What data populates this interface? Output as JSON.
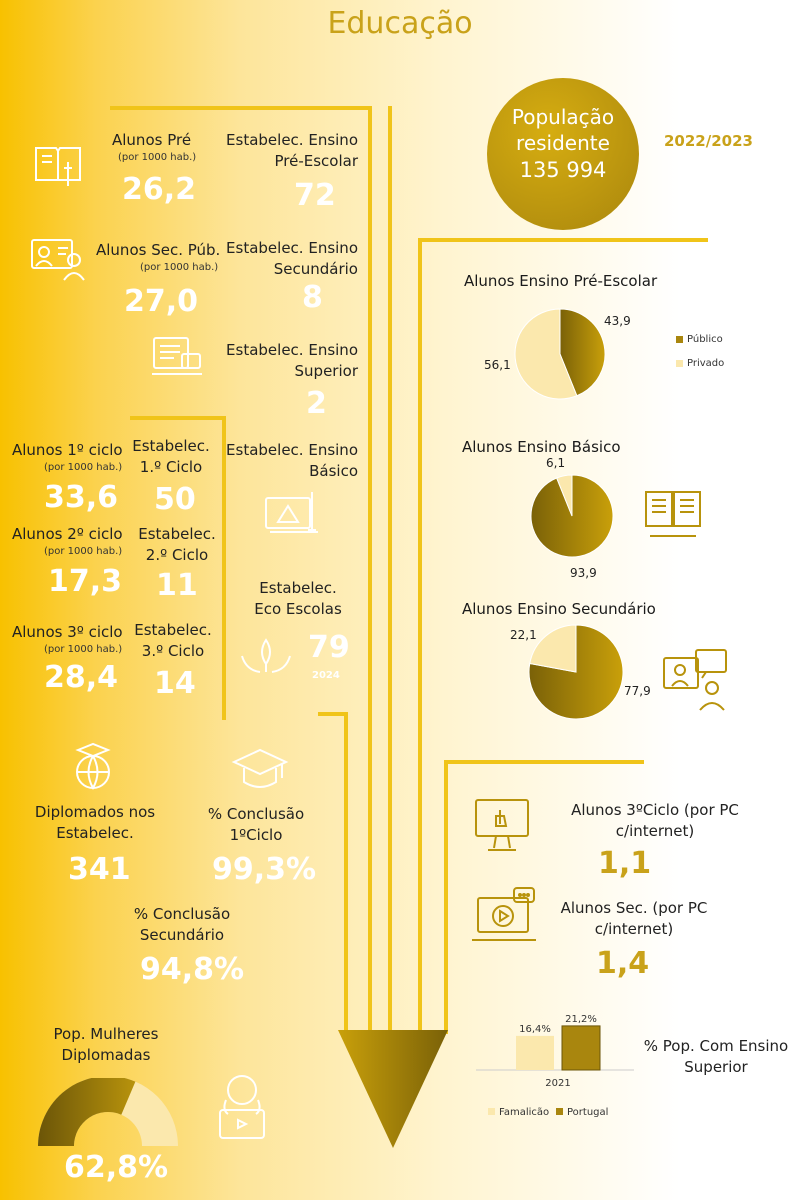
{
  "title": "Educação",
  "population": {
    "label_line1": "População",
    "label_line2": "residente",
    "value": "135 994"
  },
  "year": "2022/2023",
  "left": {
    "pre": {
      "label": "Alunos Pré",
      "sub": "(por 1000 hab.)",
      "value": "26,2"
    },
    "estab_pre": {
      "label1": "Estabelec. Ensino",
      "label2": "Pré-Escolar",
      "value": "72"
    },
    "sec_pub": {
      "label": "Alunos Sec. Púb.",
      "sub": "(por 1000 hab.)",
      "value": "27,0"
    },
    "estab_sec": {
      "label1": "Estabelec. Ensino",
      "label2": "Secundário",
      "value": "8"
    },
    "estab_sup": {
      "label1": "Estabelec. Ensino",
      "label2": "Superior",
      "value": "2"
    },
    "c1": {
      "label": "Alunos 1º ciclo",
      "sub": "(por 1000 hab.)",
      "value": "33,6"
    },
    "estab_c1": {
      "label1": "Estabelec.",
      "label2": "1.º Ciclo",
      "value": "50"
    },
    "estab_bas": {
      "label1": "Estabelec. Ensino",
      "label2": "Básico"
    },
    "c2": {
      "label": "Alunos 2º ciclo",
      "sub": "(por 1000 hab.)",
      "value": "17,3"
    },
    "estab_c2": {
      "label1": "Estabelec.",
      "label2": "2.º Ciclo",
      "value": "11"
    },
    "eco": {
      "label1": "Estabelec.",
      "label2": "Eco Escolas",
      "value": "79",
      "sub": "2024"
    },
    "c3": {
      "label": "Alunos 3º ciclo",
      "sub": "(por 1000 hab.)",
      "value": "28,4"
    },
    "estab_c3": {
      "label1": "Estabelec.",
      "label2": "3.º Ciclo",
      "value": "14"
    },
    "diplomados": {
      "label1": "Diplomados nos",
      "label2": "Estabelec.",
      "value": "341"
    },
    "concl1": {
      "label1": "% Conclusão",
      "label2": "1ºCiclo",
      "value": "99,3%"
    },
    "concl_sec": {
      "label1": "% Conclusão",
      "label2": "Secundário",
      "value": "94,8%"
    },
    "mulheres": {
      "label1": "Pop. Mulheres",
      "label2": "Diplomadas",
      "value": "62,8%",
      "fraction": 0.628
    }
  },
  "chart_data": [
    {
      "type": "pie",
      "title": "Alunos Ensino Pré-Escolar",
      "labels": [
        "Público",
        "Privado"
      ],
      "values": [
        43.9,
        56.1
      ],
      "value_labels": [
        "43,9",
        "56,1"
      ],
      "legend": "right"
    },
    {
      "type": "pie",
      "title": "Alunos Ensino Básico",
      "labels": [
        "Público",
        "Privado"
      ],
      "values": [
        93.9,
        6.1
      ],
      "value_labels": [
        "93,9",
        "6,1"
      ]
    },
    {
      "type": "pie",
      "title": "Alunos Ensino Secundário",
      "labels": [
        "Público",
        "Privado"
      ],
      "values": [
        77.9,
        22.1
      ],
      "value_labels": [
        "77,9",
        "22,1"
      ]
    },
    {
      "type": "bar",
      "title": "",
      "categories": [
        "2021"
      ],
      "series": [
        {
          "name": "Famalicão",
          "values": [
            16.4
          ]
        },
        {
          "name": "Portugal",
          "values": [
            21.2
          ]
        }
      ],
      "value_labels": [
        "16,4%",
        "21,2%"
      ],
      "ylim": [
        0,
        25
      ],
      "legend": "bottom"
    }
  ],
  "right": {
    "pc3": {
      "label1": "Alunos 3ºCiclo  (por PC",
      "label2": "c/internet)",
      "value": "1,1"
    },
    "pcsec": {
      "label1": "Alunos Sec. (por PC",
      "label2": "c/internet)",
      "value": "1,4"
    },
    "sup": {
      "label1": "% Pop. Com Ensino",
      "label2": "Superior"
    }
  },
  "colors": {
    "public": "#a9860e",
    "private": "#fbe8ad",
    "accent": "#c9a21a",
    "line": "#f0c419"
  }
}
